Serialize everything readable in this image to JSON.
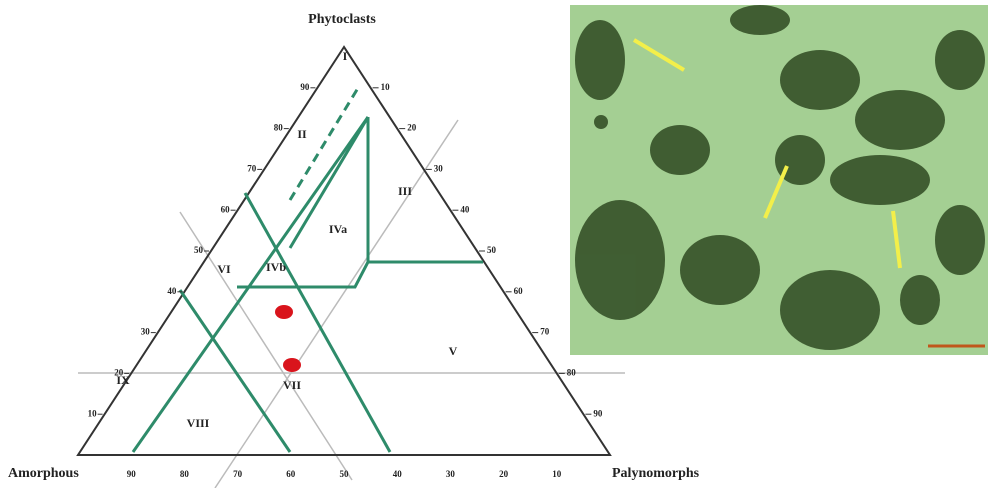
{
  "diagram": {
    "apex_label": "Phytoclasts",
    "left_label": "Amorphous",
    "right_label": "Palynomorphs",
    "left_ticks": [
      "90",
      "80",
      "70",
      "60",
      "50",
      "40",
      "30",
      "20",
      "10"
    ],
    "right_ticks": [
      "10",
      "20",
      "30",
      "40",
      "50",
      "60",
      "70",
      "80",
      "90"
    ],
    "bottom_ticks": [
      "90",
      "80",
      "70",
      "60",
      "50",
      "40",
      "30",
      "20",
      "10"
    ],
    "fields": [
      "I",
      "II",
      "III",
      "IVa",
      "IVb",
      "V",
      "VI",
      "VII",
      "VIII",
      "IX"
    ]
  }
}
